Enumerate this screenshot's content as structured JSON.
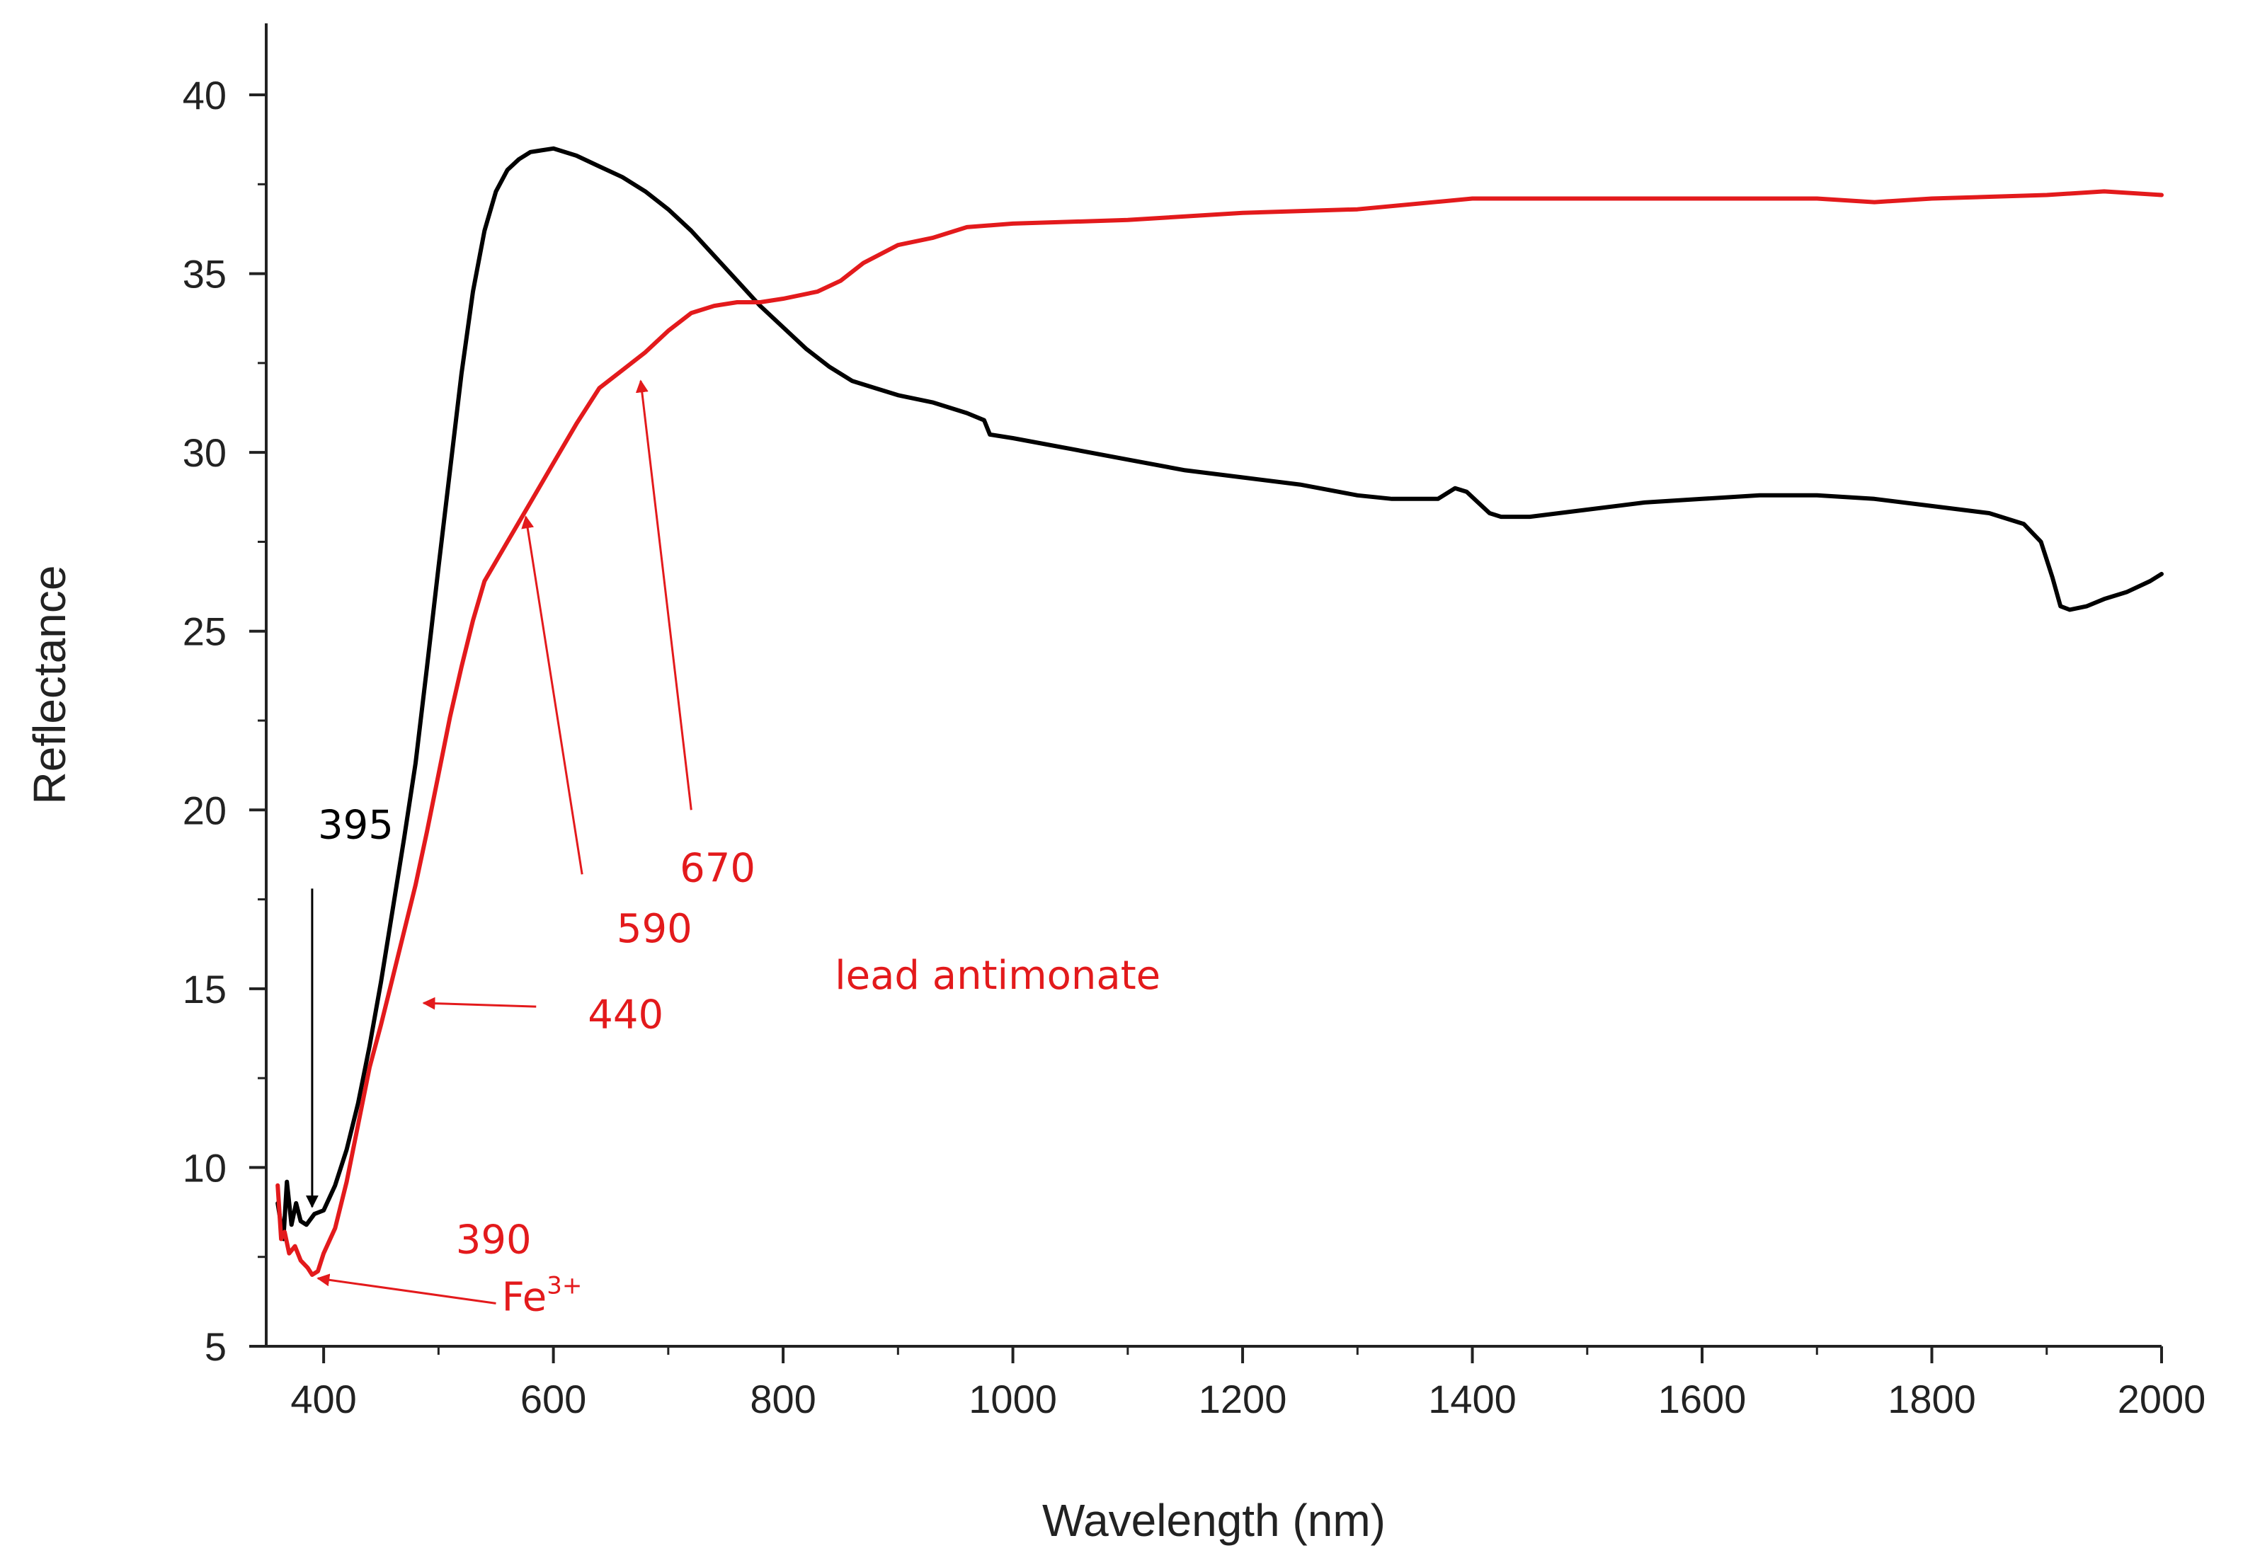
{
  "chart_data": {
    "type": "line",
    "xlabel": "Wavelength (nm)",
    "ylabel": "Reflectance",
    "xlim": [
      350,
      2000
    ],
    "ylim": [
      5,
      42
    ],
    "xticks": [
      400,
      600,
      800,
      1000,
      1200,
      1400,
      1600,
      1800,
      2000
    ],
    "yticks": [
      5,
      10,
      15,
      20,
      25,
      30,
      35,
      40
    ],
    "x_minor_step": 100,
    "y_minor_step": 2.5,
    "grid": false,
    "colors": {
      "black_series": "#000000",
      "red_series": "#e31a1c",
      "axis": "#222222"
    },
    "series": [
      {
        "name": "black",
        "color": "#000000",
        "points": [
          [
            360,
            9.0
          ],
          [
            365,
            8.0
          ],
          [
            368,
            9.6
          ],
          [
            372,
            8.4
          ],
          [
            376,
            9.0
          ],
          [
            380,
            8.5
          ],
          [
            385,
            8.4
          ],
          [
            392,
            8.7
          ],
          [
            400,
            8.8
          ],
          [
            410,
            9.5
          ],
          [
            420,
            10.5
          ],
          [
            430,
            11.8
          ],
          [
            440,
            13.4
          ],
          [
            450,
            15.2
          ],
          [
            460,
            17.2
          ],
          [
            470,
            19.2
          ],
          [
            480,
            21.3
          ],
          [
            490,
            24.0
          ],
          [
            500,
            26.8
          ],
          [
            510,
            29.5
          ],
          [
            520,
            32.2
          ],
          [
            530,
            34.5
          ],
          [
            540,
            36.2
          ],
          [
            550,
            37.3
          ],
          [
            560,
            37.9
          ],
          [
            570,
            38.2
          ],
          [
            580,
            38.4
          ],
          [
            600,
            38.5
          ],
          [
            620,
            38.3
          ],
          [
            640,
            38.0
          ],
          [
            660,
            37.7
          ],
          [
            680,
            37.3
          ],
          [
            700,
            36.8
          ],
          [
            720,
            36.2
          ],
          [
            740,
            35.5
          ],
          [
            760,
            34.8
          ],
          [
            780,
            34.1
          ],
          [
            800,
            33.5
          ],
          [
            820,
            32.9
          ],
          [
            840,
            32.4
          ],
          [
            860,
            32.0
          ],
          [
            880,
            31.8
          ],
          [
            900,
            31.6
          ],
          [
            930,
            31.4
          ],
          [
            960,
            31.1
          ],
          [
            975,
            30.9
          ],
          [
            980,
            30.5
          ],
          [
            1000,
            30.4
          ],
          [
            1050,
            30.1
          ],
          [
            1100,
            29.8
          ],
          [
            1150,
            29.5
          ],
          [
            1200,
            29.3
          ],
          [
            1250,
            29.1
          ],
          [
            1300,
            28.8
          ],
          [
            1330,
            28.7
          ],
          [
            1370,
            28.7
          ],
          [
            1385,
            29.0
          ],
          [
            1395,
            28.9
          ],
          [
            1405,
            28.6
          ],
          [
            1415,
            28.3
          ],
          [
            1425,
            28.2
          ],
          [
            1450,
            28.2
          ],
          [
            1500,
            28.4
          ],
          [
            1550,
            28.6
          ],
          [
            1600,
            28.7
          ],
          [
            1650,
            28.8
          ],
          [
            1700,
            28.8
          ],
          [
            1750,
            28.7
          ],
          [
            1800,
            28.5
          ],
          [
            1850,
            28.3
          ],
          [
            1880,
            28.0
          ],
          [
            1895,
            27.5
          ],
          [
            1905,
            26.5
          ],
          [
            1912,
            25.7
          ],
          [
            1920,
            25.6
          ],
          [
            1935,
            25.7
          ],
          [
            1950,
            25.9
          ],
          [
            1970,
            26.1
          ],
          [
            1990,
            26.4
          ],
          [
            2000,
            26.6
          ]
        ]
      },
      {
        "name": "red",
        "color": "#e31a1c",
        "points": [
          [
            360,
            9.5
          ],
          [
            363,
            8.0
          ],
          [
            366,
            8.2
          ],
          [
            370,
            7.6
          ],
          [
            375,
            7.8
          ],
          [
            380,
            7.4
          ],
          [
            386,
            7.2
          ],
          [
            390,
            7.0
          ],
          [
            395,
            7.1
          ],
          [
            400,
            7.6
          ],
          [
            410,
            8.3
          ],
          [
            420,
            9.6
          ],
          [
            430,
            11.2
          ],
          [
            440,
            12.8
          ],
          [
            450,
            14.0
          ],
          [
            460,
            15.3
          ],
          [
            470,
            16.6
          ],
          [
            480,
            17.9
          ],
          [
            490,
            19.4
          ],
          [
            500,
            21.0
          ],
          [
            510,
            22.6
          ],
          [
            520,
            24.0
          ],
          [
            530,
            25.3
          ],
          [
            540,
            26.4
          ],
          [
            560,
            27.5
          ],
          [
            580,
            28.6
          ],
          [
            600,
            29.7
          ],
          [
            620,
            30.8
          ],
          [
            640,
            31.8
          ],
          [
            660,
            32.3
          ],
          [
            680,
            32.8
          ],
          [
            700,
            33.4
          ],
          [
            720,
            33.9
          ],
          [
            740,
            34.1
          ],
          [
            760,
            34.2
          ],
          [
            780,
            34.2
          ],
          [
            800,
            34.3
          ],
          [
            830,
            34.5
          ],
          [
            850,
            34.8
          ],
          [
            870,
            35.3
          ],
          [
            900,
            35.8
          ],
          [
            930,
            36.0
          ],
          [
            960,
            36.3
          ],
          [
            1000,
            36.4
          ],
          [
            1100,
            36.5
          ],
          [
            1200,
            36.7
          ],
          [
            1300,
            36.8
          ],
          [
            1400,
            37.1
          ],
          [
            1500,
            37.1
          ],
          [
            1600,
            37.1
          ],
          [
            1700,
            37.1
          ],
          [
            1750,
            37.0
          ],
          [
            1800,
            37.1
          ],
          [
            1900,
            37.2
          ],
          [
            1950,
            37.3
          ],
          [
            2000,
            37.2
          ]
        ]
      }
    ],
    "annotations": [
      {
        "text": "395",
        "color": "#000000",
        "x": 395,
        "y": 19.2,
        "arrow_from": [
          390,
          17.8
        ],
        "arrow_to": [
          390,
          8.9
        ]
      },
      {
        "text": "390",
        "color": "#e31a1c",
        "x": 515,
        "y": 7.6
      },
      {
        "text": "Fe",
        "sup": "3+",
        "color": "#e31a1c",
        "x": 555,
        "y": 6.0,
        "arrow_from": [
          550,
          6.2
        ],
        "arrow_to": [
          395,
          6.9
        ]
      },
      {
        "text": "440",
        "color": "#e31a1c",
        "x": 630,
        "y": 13.9,
        "arrow_from": [
          585,
          14.5
        ],
        "arrow_to": [
          487,
          14.6
        ]
      },
      {
        "text": "590",
        "color": "#e31a1c",
        "x": 655,
        "y": 16.3,
        "arrow_from": [
          625,
          18.2
        ],
        "arrow_to": [
          576,
          28.2
        ]
      },
      {
        "text": "670",
        "color": "#e31a1c",
        "x": 710,
        "y": 18.0,
        "arrow_from": [
          720,
          20.0
        ],
        "arrow_to": [
          676,
          32.0
        ]
      },
      {
        "text": "lead antimonate",
        "color": "#e31a1c",
        "x": 845,
        "y": 15.0
      }
    ]
  }
}
